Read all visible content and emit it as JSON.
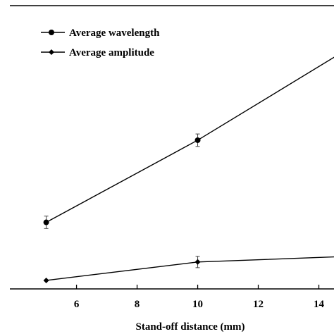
{
  "chart_data": {
    "type": "line",
    "title": "",
    "xlabel": "Stand-off distance (mm)",
    "ylabel": "",
    "xlim": [
      3.8,
      14.5
    ],
    "ylim": [
      0,
      100
    ],
    "x_ticks": [
      6,
      8,
      10,
      12,
      14
    ],
    "grid": false,
    "legend_placement": "top-left",
    "series": [
      {
        "name": "Average wavelength",
        "marker": "circle",
        "x": [
          5,
          10,
          15
        ],
        "y": [
          23.5,
          52.5,
          85.0
        ],
        "error": [
          2.2,
          2.2,
          0
        ]
      },
      {
        "name": "Average amplitude",
        "marker": "diamond",
        "x": [
          5,
          10,
          15
        ],
        "y": [
          3.0,
          9.5,
          11.5
        ],
        "error": [
          0,
          2.0,
          0
        ]
      }
    ]
  }
}
